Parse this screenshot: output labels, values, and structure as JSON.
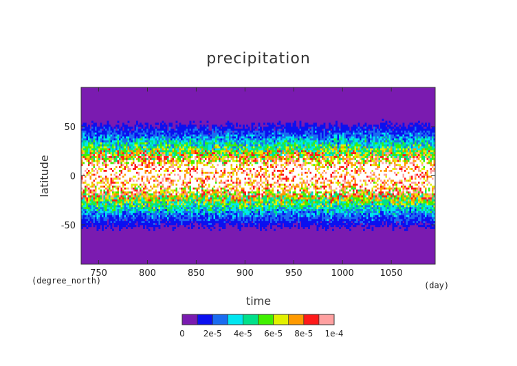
{
  "chart_data": {
    "type": "heatmap",
    "title": "precipitation",
    "xlabel": "time",
    "ylabel": "latitude",
    "x_units": "(day)",
    "y_units": "(degree_north)",
    "xlim": [
      732,
      1095
    ],
    "ylim": [
      -90,
      90
    ],
    "x_ticks": [
      750,
      800,
      850,
      900,
      950,
      1000,
      1050
    ],
    "y_ticks": [
      50,
      0,
      -50
    ],
    "colorbar": {
      "levels": [
        0,
        1e-05,
        2e-05,
        3e-05,
        4e-05,
        5e-05,
        6e-05,
        7e-05,
        8e-05,
        9e-05,
        0.0001
      ],
      "colors": [
        "#7a1bb0",
        "#0b10f0",
        "#1a6cf0",
        "#00e6f0",
        "#00e08a",
        "#40f000",
        "#e2f000",
        "#ff9a00",
        "#ff1a1a",
        "#ffa0a0"
      ],
      "tick_labels": [
        "0",
        "2e-5",
        "4e-5",
        "6e-5",
        "8e-5",
        "1e-4"
      ]
    },
    "field_description_by_latitude": [
      {
        "lat": 90,
        "value": 0
      },
      {
        "lat": 60,
        "value": 0
      },
      {
        "lat": 50,
        "value": 1.2e-05
      },
      {
        "lat": 40,
        "value": 2.5e-05
      },
      {
        "lat": 30,
        "value": 4.5e-05
      },
      {
        "lat": 20,
        "value": 7e-05
      },
      {
        "lat": 10,
        "value": 0.000105
      },
      {
        "lat": 0,
        "value": 0.00012
      },
      {
        "lat": -10,
        "value": 0.000105
      },
      {
        "lat": -20,
        "value": 7e-05
      },
      {
        "lat": -30,
        "value": 4.5e-05
      },
      {
        "lat": -40,
        "value": 2.5e-05
      },
      {
        "lat": -50,
        "value": 1.2e-05
      },
      {
        "lat": -60,
        "value": 0
      },
      {
        "lat": -90,
        "value": 0
      }
    ],
    "above_max_color": "#ffffff",
    "grid": false
  }
}
